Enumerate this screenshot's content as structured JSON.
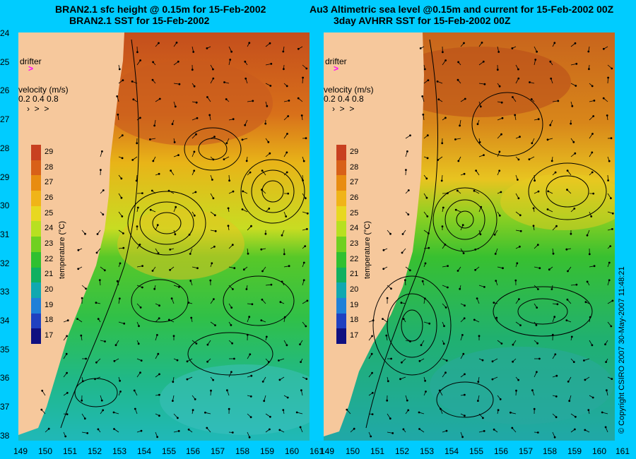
{
  "left": {
    "title1": "BRAN2.1 sfc height @ 0.15m for 15-Feb-2002",
    "title2": "BRAN2.1 SST for 15-Feb-2002"
  },
  "right": {
    "title1": "Au3 Altimetric sea level  @0.15m and current for 15-Feb-2002 00Z",
    "title2": "3day AVHRR SST for 15-Feb-2002 00Z"
  },
  "legend": {
    "drifter": "drifter",
    "velocity_label": "velocity (m/s)",
    "velocity_values": "0.2 0.4 0.8"
  },
  "colorbar": {
    "ticks": [
      "29",
      "28",
      "27",
      "26",
      "25",
      "24",
      "23",
      "22",
      "21",
      "20",
      "19",
      "18",
      "17"
    ],
    "unit_label": "temperature (°C)",
    "colors": [
      "#c84020",
      "#d86018",
      "#e88c10",
      "#f0b418",
      "#e8d820",
      "#b8e020",
      "#70d020",
      "#30c030",
      "#10b060",
      "#10a8b0",
      "#2080d8",
      "#2040c0",
      "#101080"
    ]
  },
  "lat_labels": [
    "24",
    "25",
    "26",
    "27",
    "28",
    "29",
    "30",
    "31",
    "32",
    "33",
    "34",
    "35",
    "36",
    "37",
    "38"
  ],
  "lon_labels": [
    "149",
    "150",
    "151",
    "152",
    "153",
    "154",
    "155",
    "156",
    "157",
    "158",
    "159",
    "160",
    "161"
  ],
  "copyright": "© Copyright CSIRO 2007   30-May-2007 11:48:21",
  "colors": {
    "background": "#00ccff",
    "land": "#f6c89c",
    "drifter": "#ff00ff"
  }
}
